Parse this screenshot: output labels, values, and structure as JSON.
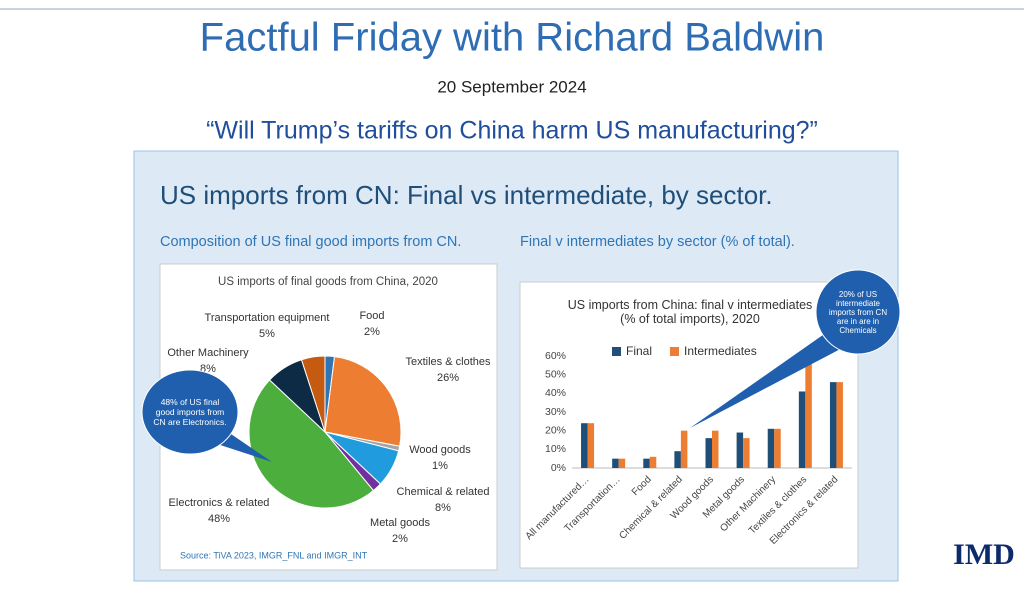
{
  "header": {
    "title": "Factful Friday with Richard Baldwin",
    "date": "20 September 2024",
    "question": "“Will Trump’s tariffs on China harm US manufacturing?”"
  },
  "slide": {
    "title": "US imports from CN: Final vs intermediate, by sector.",
    "left_heading": "Composition of US final good imports from CN.",
    "right_heading": "Final v intermediates by sector (% of total).",
    "source": "Source: TiVA 2023, IMGR_FNL and IMGR_INT"
  },
  "logo": "IMD",
  "chart_data": [
    {
      "type": "pie",
      "title": "US imports of final goods from China, 2020",
      "categories": [
        "Food",
        "Textiles & clothes",
        "Wood goods",
        "Chemical & related",
        "Metal goods",
        "Electronics & related",
        "Other Machinery",
        "Transportation equipment"
      ],
      "values": [
        2,
        26,
        1,
        8,
        2,
        48,
        8,
        5
      ],
      "value_labels": [
        "2%",
        "26%",
        "1%",
        "8%",
        "2%",
        "48%",
        "8%",
        "5%"
      ],
      "colors": [
        "#2e75b6",
        "#ed7d31",
        "#a5a5a5",
        "#1f9bde",
        "#7030a0",
        "#4cae3c",
        "#0d2b45",
        "#c55a11"
      ],
      "annotation": "48% of US final good imports from CN are Electronics."
    },
    {
      "type": "bar",
      "title": "US imports from China: final v intermediates (% of total imports), 2020",
      "categories": [
        "All manufactured…",
        "Transportation…",
        "Food",
        "Chemical & related",
        "Wood goods",
        "Metal goods",
        "Other Machinery",
        "Textiles & clothes",
        "Electronics & related"
      ],
      "series": [
        {
          "name": "Final",
          "color": "#1f4e79",
          "values": [
            24,
            5,
            5,
            9,
            16,
            19,
            21,
            41,
            46
          ]
        },
        {
          "name": "Intermediates",
          "color": "#ed7d31",
          "values": [
            24,
            5,
            6,
            20,
            20,
            16,
            21,
            57,
            46
          ]
        }
      ],
      "ylim": [
        0,
        60
      ],
      "yticks": [
        {
          "value": 0,
          "label": "0%"
        },
        {
          "value": 10,
          "label": "10%"
        },
        {
          "value": 20,
          "label": "20%"
        },
        {
          "value": 30,
          "label": "30%"
        },
        {
          "value": 40,
          "label": "40%"
        },
        {
          "value": 50,
          "label": "50%"
        },
        {
          "value": 60,
          "label": "60%"
        }
      ],
      "annotation": "20% of US intermediate imports from CN are in are in Chemicals"
    }
  ]
}
